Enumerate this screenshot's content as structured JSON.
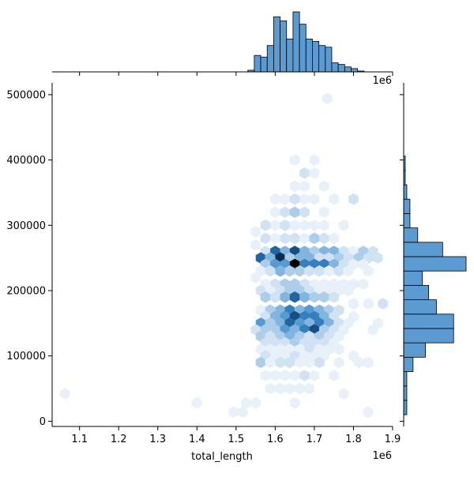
{
  "colors": {
    "base": "#3a7fc4",
    "dark": "#08306b",
    "hist_fill": "#5b9bd1",
    "edge": "#000000",
    "bg": "#ffffff"
  },
  "chart_data": {
    "type": "hexbin",
    "xlabel": "total_length",
    "ylabel": "",
    "x_offset_label": "1e6",
    "top_offset_label": "1e6",
    "xlim": [
      1.03,
      1.9
    ],
    "ylim": [
      -8000,
      518000
    ],
    "x_ticks": [
      1.1,
      1.2,
      1.3,
      1.4,
      1.5,
      1.6,
      1.7,
      1.8,
      1.9
    ],
    "x_tick_labels": [
      "1.1",
      "1.2",
      "1.3",
      "1.4",
      "1.5",
      "1.6",
      "1.7",
      "1.8",
      "1.9"
    ],
    "y_ticks": [
      0,
      100000,
      200000,
      300000,
      400000,
      500000
    ],
    "y_tick_labels": [
      "0",
      "100000",
      "200000",
      "300000",
      "400000",
      "500000"
    ],
    "hex_bins": [
      {
        "x": 1.733,
        "y": 494000,
        "c": 1
      },
      {
        "x": 1.65,
        "y": 400000,
        "c": 1
      },
      {
        "x": 1.7,
        "y": 400000,
        "c": 1
      },
      {
        "x": 1.675,
        "y": 380000,
        "c": 2
      },
      {
        "x": 1.7,
        "y": 380000,
        "c": 1
      },
      {
        "x": 1.65,
        "y": 360000,
        "c": 1
      },
      {
        "x": 1.675,
        "y": 360000,
        "c": 1
      },
      {
        "x": 1.725,
        "y": 360000,
        "c": 1
      },
      {
        "x": 1.6,
        "y": 340000,
        "c": 1
      },
      {
        "x": 1.625,
        "y": 340000,
        "c": 1
      },
      {
        "x": 1.65,
        "y": 340000,
        "c": 2
      },
      {
        "x": 1.675,
        "y": 340000,
        "c": 1
      },
      {
        "x": 1.7,
        "y": 340000,
        "c": 1
      },
      {
        "x": 1.75,
        "y": 340000,
        "c": 1
      },
      {
        "x": 1.8,
        "y": 340000,
        "c": 2
      },
      {
        "x": 1.6,
        "y": 320000,
        "c": 1
      },
      {
        "x": 1.625,
        "y": 320000,
        "c": 2
      },
      {
        "x": 1.65,
        "y": 320000,
        "c": 3
      },
      {
        "x": 1.675,
        "y": 320000,
        "c": 2
      },
      {
        "x": 1.725,
        "y": 320000,
        "c": 1
      },
      {
        "x": 1.575,
        "y": 300000,
        "c": 2
      },
      {
        "x": 1.6,
        "y": 300000,
        "c": 1
      },
      {
        "x": 1.625,
        "y": 300000,
        "c": 2
      },
      {
        "x": 1.65,
        "y": 300000,
        "c": 1
      },
      {
        "x": 1.675,
        "y": 300000,
        "c": 1
      },
      {
        "x": 1.7,
        "y": 300000,
        "c": 1
      },
      {
        "x": 1.725,
        "y": 300000,
        "c": 1
      },
      {
        "x": 1.775,
        "y": 300000,
        "c": 1
      },
      {
        "x": 1.55,
        "y": 290000,
        "c": 1
      },
      {
        "x": 1.575,
        "y": 280000,
        "c": 2
      },
      {
        "x": 1.6,
        "y": 280000,
        "c": 1
      },
      {
        "x": 1.625,
        "y": 280000,
        "c": 2
      },
      {
        "x": 1.65,
        "y": 280000,
        "c": 2
      },
      {
        "x": 1.675,
        "y": 280000,
        "c": 1
      },
      {
        "x": 1.7,
        "y": 280000,
        "c": 3
      },
      {
        "x": 1.725,
        "y": 280000,
        "c": 2
      },
      {
        "x": 1.75,
        "y": 280000,
        "c": 1
      },
      {
        "x": 1.55,
        "y": 270000,
        "c": 1
      },
      {
        "x": 1.575,
        "y": 260000,
        "c": 2
      },
      {
        "x": 1.6,
        "y": 260000,
        "c": 7
      },
      {
        "x": 1.625,
        "y": 260000,
        "c": 4
      },
      {
        "x": 1.65,
        "y": 260000,
        "c": 8
      },
      {
        "x": 1.675,
        "y": 260000,
        "c": 4
      },
      {
        "x": 1.7,
        "y": 260000,
        "c": 3
      },
      {
        "x": 1.725,
        "y": 260000,
        "c": 4
      },
      {
        "x": 1.75,
        "y": 260000,
        "c": 4
      },
      {
        "x": 1.775,
        "y": 260000,
        "c": 2
      },
      {
        "x": 1.8,
        "y": 260000,
        "c": 1
      },
      {
        "x": 1.825,
        "y": 260000,
        "c": 3
      },
      {
        "x": 1.85,
        "y": 260000,
        "c": 2
      },
      {
        "x": 1.563,
        "y": 250000,
        "c": 7
      },
      {
        "x": 1.587,
        "y": 250000,
        "c": 4
      },
      {
        "x": 1.613,
        "y": 250000,
        "c": 9
      },
      {
        "x": 1.637,
        "y": 250000,
        "c": 3
      },
      {
        "x": 1.663,
        "y": 250000,
        "c": 4
      },
      {
        "x": 1.687,
        "y": 250000,
        "c": 4
      },
      {
        "x": 1.713,
        "y": 250000,
        "c": 2
      },
      {
        "x": 1.737,
        "y": 250000,
        "c": 2
      },
      {
        "x": 1.763,
        "y": 250000,
        "c": 3
      },
      {
        "x": 1.787,
        "y": 250000,
        "c": 2
      },
      {
        "x": 1.813,
        "y": 250000,
        "c": 3
      },
      {
        "x": 1.838,
        "y": 250000,
        "c": 2
      },
      {
        "x": 1.862,
        "y": 250000,
        "c": 2
      },
      {
        "x": 1.575,
        "y": 240000,
        "c": 3
      },
      {
        "x": 1.6,
        "y": 240000,
        "c": 5
      },
      {
        "x": 1.625,
        "y": 240000,
        "c": 5
      },
      {
        "x": 1.65,
        "y": 240000,
        "c": 10
      },
      {
        "x": 1.675,
        "y": 240000,
        "c": 6
      },
      {
        "x": 1.7,
        "y": 240000,
        "c": 6
      },
      {
        "x": 1.725,
        "y": 240000,
        "c": 6
      },
      {
        "x": 1.75,
        "y": 240000,
        "c": 4
      },
      {
        "x": 1.775,
        "y": 240000,
        "c": 2
      },
      {
        "x": 1.8,
        "y": 240000,
        "c": 1
      },
      {
        "x": 1.825,
        "y": 240000,
        "c": 1
      },
      {
        "x": 1.563,
        "y": 230000,
        "c": 1
      },
      {
        "x": 1.587,
        "y": 230000,
        "c": 2
      },
      {
        "x": 1.613,
        "y": 230000,
        "c": 4
      },
      {
        "x": 1.637,
        "y": 230000,
        "c": 3
      },
      {
        "x": 1.663,
        "y": 230000,
        "c": 3
      },
      {
        "x": 1.687,
        "y": 230000,
        "c": 2
      },
      {
        "x": 1.713,
        "y": 230000,
        "c": 2
      },
      {
        "x": 1.737,
        "y": 230000,
        "c": 1
      },
      {
        "x": 1.763,
        "y": 230000,
        "c": 2
      },
      {
        "x": 1.787,
        "y": 230000,
        "c": 1
      },
      {
        "x": 1.838,
        "y": 230000,
        "c": 1
      },
      {
        "x": 1.55,
        "y": 220000,
        "c": 1
      },
      {
        "x": 1.575,
        "y": 210000,
        "c": 1
      },
      {
        "x": 1.6,
        "y": 210000,
        "c": 2
      },
      {
        "x": 1.625,
        "y": 210000,
        "c": 3
      },
      {
        "x": 1.65,
        "y": 210000,
        "c": 3
      },
      {
        "x": 1.675,
        "y": 210000,
        "c": 2
      },
      {
        "x": 1.7,
        "y": 210000,
        "c": 1
      },
      {
        "x": 1.725,
        "y": 210000,
        "c": 1
      },
      {
        "x": 1.75,
        "y": 210000,
        "c": 1
      },
      {
        "x": 1.775,
        "y": 210000,
        "c": 1
      },
      {
        "x": 1.8,
        "y": 210000,
        "c": 1
      },
      {
        "x": 1.825,
        "y": 210000,
        "c": 1
      },
      {
        "x": 1.563,
        "y": 200000,
        "c": 2
      },
      {
        "x": 1.587,
        "y": 200000,
        "c": 1
      },
      {
        "x": 1.613,
        "y": 200000,
        "c": 2
      },
      {
        "x": 1.637,
        "y": 200000,
        "c": 3
      },
      {
        "x": 1.663,
        "y": 200000,
        "c": 3
      },
      {
        "x": 1.687,
        "y": 200000,
        "c": 2
      },
      {
        "x": 1.713,
        "y": 200000,
        "c": 1
      },
      {
        "x": 1.737,
        "y": 200000,
        "c": 1
      },
      {
        "x": 1.763,
        "y": 200000,
        "c": 1
      },
      {
        "x": 1.787,
        "y": 200000,
        "c": 1
      },
      {
        "x": 1.575,
        "y": 190000,
        "c": 3
      },
      {
        "x": 1.6,
        "y": 190000,
        "c": 2
      },
      {
        "x": 1.625,
        "y": 190000,
        "c": 4
      },
      {
        "x": 1.65,
        "y": 190000,
        "c": 7
      },
      {
        "x": 1.675,
        "y": 190000,
        "c": 4
      },
      {
        "x": 1.7,
        "y": 190000,
        "c": 3
      },
      {
        "x": 1.725,
        "y": 190000,
        "c": 3
      },
      {
        "x": 1.75,
        "y": 190000,
        "c": 2
      },
      {
        "x": 1.8,
        "y": 180000,
        "c": 1
      },
      {
        "x": 1.838,
        "y": 180000,
        "c": 1
      },
      {
        "x": 1.875,
        "y": 180000,
        "c": 2
      },
      {
        "x": 1.563,
        "y": 170000,
        "c": 1
      },
      {
        "x": 1.587,
        "y": 170000,
        "c": 3
      },
      {
        "x": 1.613,
        "y": 170000,
        "c": 4
      },
      {
        "x": 1.637,
        "y": 170000,
        "c": 6
      },
      {
        "x": 1.663,
        "y": 170000,
        "c": 4
      },
      {
        "x": 1.687,
        "y": 170000,
        "c": 5
      },
      {
        "x": 1.713,
        "y": 170000,
        "c": 4
      },
      {
        "x": 1.737,
        "y": 170000,
        "c": 3
      },
      {
        "x": 1.763,
        "y": 170000,
        "c": 2
      },
      {
        "x": 1.575,
        "y": 160000,
        "c": 2
      },
      {
        "x": 1.6,
        "y": 160000,
        "c": 4
      },
      {
        "x": 1.625,
        "y": 160000,
        "c": 5
      },
      {
        "x": 1.65,
        "y": 160000,
        "c": 8
      },
      {
        "x": 1.675,
        "y": 160000,
        "c": 6
      },
      {
        "x": 1.7,
        "y": 160000,
        "c": 6
      },
      {
        "x": 1.725,
        "y": 160000,
        "c": 4
      },
      {
        "x": 1.75,
        "y": 160000,
        "c": 2
      },
      {
        "x": 1.8,
        "y": 160000,
        "c": 1
      },
      {
        "x": 1.563,
        "y": 150000,
        "c": 5
      },
      {
        "x": 1.587,
        "y": 150000,
        "c": 3
      },
      {
        "x": 1.613,
        "y": 150000,
        "c": 4
      },
      {
        "x": 1.637,
        "y": 150000,
        "c": 7
      },
      {
        "x": 1.663,
        "y": 150000,
        "c": 5
      },
      {
        "x": 1.687,
        "y": 150000,
        "c": 4
      },
      {
        "x": 1.713,
        "y": 150000,
        "c": 6
      },
      {
        "x": 1.737,
        "y": 150000,
        "c": 4
      },
      {
        "x": 1.763,
        "y": 150000,
        "c": 2
      },
      {
        "x": 1.787,
        "y": 150000,
        "c": 1
      },
      {
        "x": 1.863,
        "y": 150000,
        "c": 1
      },
      {
        "x": 1.55,
        "y": 140000,
        "c": 2
      },
      {
        "x": 1.575,
        "y": 140000,
        "c": 3
      },
      {
        "x": 1.6,
        "y": 140000,
        "c": 3
      },
      {
        "x": 1.625,
        "y": 140000,
        "c": 5
      },
      {
        "x": 1.65,
        "y": 140000,
        "c": 4
      },
      {
        "x": 1.675,
        "y": 140000,
        "c": 6
      },
      {
        "x": 1.7,
        "y": 140000,
        "c": 8
      },
      {
        "x": 1.725,
        "y": 140000,
        "c": 3
      },
      {
        "x": 1.75,
        "y": 140000,
        "c": 2
      },
      {
        "x": 1.775,
        "y": 140000,
        "c": 1
      },
      {
        "x": 1.85,
        "y": 140000,
        "c": 1
      },
      {
        "x": 1.563,
        "y": 130000,
        "c": 3
      },
      {
        "x": 1.587,
        "y": 130000,
        "c": 2
      },
      {
        "x": 1.613,
        "y": 130000,
        "c": 3
      },
      {
        "x": 1.637,
        "y": 130000,
        "c": 4
      },
      {
        "x": 1.663,
        "y": 130000,
        "c": 3
      },
      {
        "x": 1.687,
        "y": 130000,
        "c": 2
      },
      {
        "x": 1.713,
        "y": 130000,
        "c": 3
      },
      {
        "x": 1.737,
        "y": 130000,
        "c": 2
      },
      {
        "x": 1.763,
        "y": 130000,
        "c": 1
      },
      {
        "x": 1.575,
        "y": 120000,
        "c": 2
      },
      {
        "x": 1.6,
        "y": 120000,
        "c": 2
      },
      {
        "x": 1.625,
        "y": 120000,
        "c": 2
      },
      {
        "x": 1.65,
        "y": 120000,
        "c": 3
      },
      {
        "x": 1.675,
        "y": 120000,
        "c": 2
      },
      {
        "x": 1.7,
        "y": 120000,
        "c": 2
      },
      {
        "x": 1.725,
        "y": 120000,
        "c": 2
      },
      {
        "x": 1.75,
        "y": 120000,
        "c": 1
      },
      {
        "x": 1.563,
        "y": 110000,
        "c": 1
      },
      {
        "x": 1.587,
        "y": 110000,
        "c": 1
      },
      {
        "x": 1.613,
        "y": 110000,
        "c": 1
      },
      {
        "x": 1.637,
        "y": 110000,
        "c": 1
      },
      {
        "x": 1.663,
        "y": 110000,
        "c": 1
      },
      {
        "x": 1.687,
        "y": 110000,
        "c": 2
      },
      {
        "x": 1.713,
        "y": 110000,
        "c": 1
      },
      {
        "x": 1.737,
        "y": 110000,
        "c": 1
      },
      {
        "x": 1.763,
        "y": 110000,
        "c": 1
      },
      {
        "x": 1.575,
        "y": 100000,
        "c": 2
      },
      {
        "x": 1.6,
        "y": 100000,
        "c": 1
      },
      {
        "x": 1.625,
        "y": 100000,
        "c": 1
      },
      {
        "x": 1.65,
        "y": 100000,
        "c": 2
      },
      {
        "x": 1.675,
        "y": 100000,
        "c": 1
      },
      {
        "x": 1.7,
        "y": 100000,
        "c": 1
      },
      {
        "x": 1.725,
        "y": 100000,
        "c": 1
      },
      {
        "x": 1.8,
        "y": 100000,
        "c": 1
      },
      {
        "x": 1.563,
        "y": 90000,
        "c": 3
      },
      {
        "x": 1.587,
        "y": 90000,
        "c": 1
      },
      {
        "x": 1.613,
        "y": 90000,
        "c": 2
      },
      {
        "x": 1.637,
        "y": 90000,
        "c": 2
      },
      {
        "x": 1.663,
        "y": 90000,
        "c": 1
      },
      {
        "x": 1.687,
        "y": 90000,
        "c": 1
      },
      {
        "x": 1.713,
        "y": 90000,
        "c": 2
      },
      {
        "x": 1.763,
        "y": 90000,
        "c": 1
      },
      {
        "x": 1.813,
        "y": 90000,
        "c": 1
      },
      {
        "x": 1.838,
        "y": 90000,
        "c": 1
      },
      {
        "x": 1.575,
        "y": 70000,
        "c": 1
      },
      {
        "x": 1.6,
        "y": 70000,
        "c": 1
      },
      {
        "x": 1.625,
        "y": 70000,
        "c": 1
      },
      {
        "x": 1.65,
        "y": 70000,
        "c": 1
      },
      {
        "x": 1.675,
        "y": 70000,
        "c": 2
      },
      {
        "x": 1.7,
        "y": 70000,
        "c": 1
      },
      {
        "x": 1.75,
        "y": 70000,
        "c": 1
      },
      {
        "x": 1.587,
        "y": 50000,
        "c": 1
      },
      {
        "x": 1.613,
        "y": 50000,
        "c": 1
      },
      {
        "x": 1.637,
        "y": 50000,
        "c": 1
      },
      {
        "x": 1.663,
        "y": 50000,
        "c": 1
      },
      {
        "x": 1.687,
        "y": 50000,
        "c": 1
      },
      {
        "x": 1.063,
        "y": 42000,
        "c": 1
      },
      {
        "x": 1.775,
        "y": 42000,
        "c": 1
      },
      {
        "x": 1.4,
        "y": 28000,
        "c": 1
      },
      {
        "x": 1.525,
        "y": 28000,
        "c": 1
      },
      {
        "x": 1.55,
        "y": 28000,
        "c": 1
      },
      {
        "x": 1.65,
        "y": 28000,
        "c": 1
      },
      {
        "x": 1.493,
        "y": 14000,
        "c": 1
      },
      {
        "x": 1.517,
        "y": 14000,
        "c": 1
      },
      {
        "x": 1.837,
        "y": 14000,
        "c": 1
      }
    ],
    "top_hist": {
      "bin_edges_start": 1.53,
      "bin_width": 0.0165,
      "counts": [
        2,
        20,
        18,
        32,
        67,
        62,
        40,
        73,
        58,
        40,
        37,
        32,
        30,
        11,
        9,
        6,
        4,
        1,
        0,
        0
      ]
    },
    "right_hist": {
      "bins": [
        {
          "y0": 10000,
          "y1": 32000,
          "v": 2
        },
        {
          "y0": 32000,
          "y1": 54000,
          "v": 2
        },
        {
          "y0": 54000,
          "y1": 76000,
          "v": 2
        },
        {
          "y0": 76000,
          "y1": 98000,
          "v": 6
        },
        {
          "y0": 98000,
          "y1": 120000,
          "v": 14
        },
        {
          "y0": 120000,
          "y1": 142000,
          "v": 32
        },
        {
          "y0": 142000,
          "y1": 164000,
          "v": 32
        },
        {
          "y0": 164000,
          "y1": 186000,
          "v": 21
        },
        {
          "y0": 186000,
          "y1": 208000,
          "v": 16
        },
        {
          "y0": 208000,
          "y1": 230000,
          "v": 12
        },
        {
          "y0": 230000,
          "y1": 252000,
          "v": 40
        },
        {
          "y0": 252000,
          "y1": 274000,
          "v": 25
        },
        {
          "y0": 274000,
          "y1": 296000,
          "v": 9
        },
        {
          "y0": 296000,
          "y1": 318000,
          "v": 4
        },
        {
          "y0": 318000,
          "y1": 340000,
          "v": 4
        },
        {
          "y0": 340000,
          "y1": 362000,
          "v": 2
        },
        {
          "y0": 362000,
          "y1": 384000,
          "v": 1
        },
        {
          "y0": 384000,
          "y1": 406000,
          "v": 1
        }
      ]
    }
  }
}
